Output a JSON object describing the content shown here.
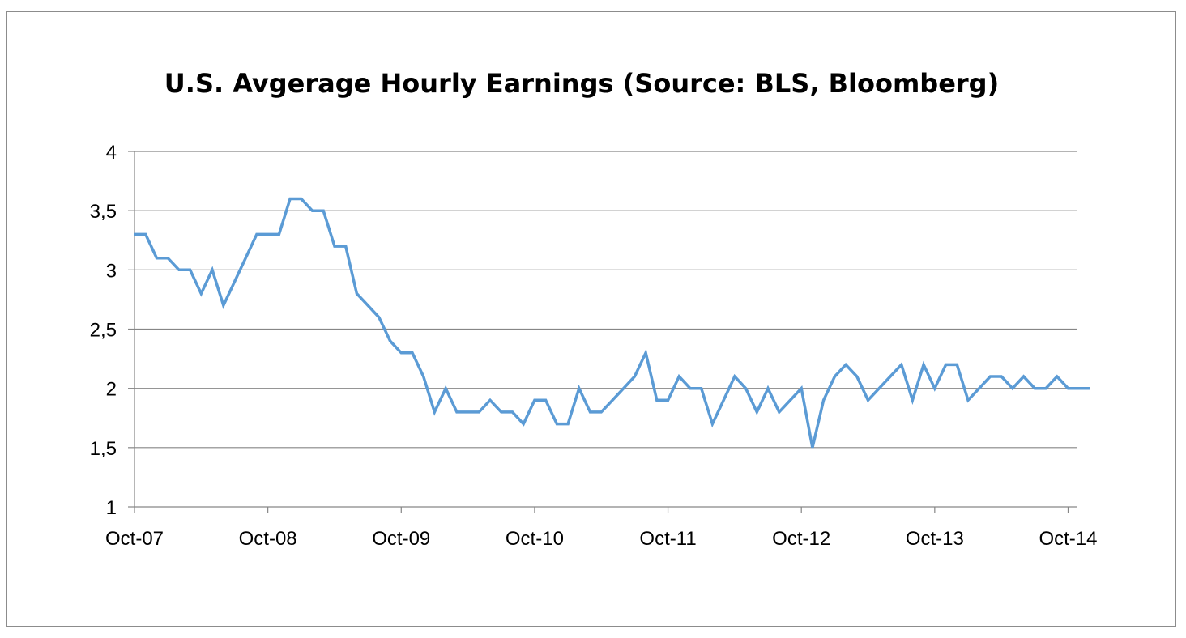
{
  "chart_data": {
    "type": "line",
    "title": "U.S. Avgerage Hourly Earnings (Source: BLS, Bloomberg)",
    "xlabel": "",
    "ylabel": "",
    "ylim": [
      1,
      4
    ],
    "y_ticks": [
      "1",
      "1,5",
      "2",
      "2,5",
      "3",
      "3,5",
      "4"
    ],
    "y_tick_values": [
      1,
      1.5,
      2,
      2.5,
      3,
      3.5,
      4
    ],
    "x_ticks": [
      "Oct-07",
      "Oct-08",
      "Oct-09",
      "Oct-10",
      "Oct-11",
      "Oct-12",
      "Oct-13",
      "Oct-14"
    ],
    "x_start": "Oct-07",
    "x_end": "Nov-14",
    "grid": true,
    "legend": "none",
    "line_color": "#5b9bd5",
    "grid_color": "#868686",
    "series": [
      {
        "values": [
          3.3,
          3.3,
          3.1,
          3.1,
          3.0,
          3.0,
          2.8,
          3.0,
          2.7,
          2.9,
          3.1,
          3.3,
          3.3,
          3.3,
          3.6,
          3.6,
          3.5,
          3.5,
          3.2,
          3.2,
          2.8,
          2.7,
          2.6,
          2.4,
          2.3,
          2.3,
          2.1,
          1.8,
          2.0,
          1.8,
          1.8,
          1.8,
          1.9,
          1.8,
          1.8,
          1.7,
          1.9,
          1.9,
          1.7,
          1.7,
          2.0,
          1.8,
          1.8,
          1.9,
          2.0,
          2.1,
          2.3,
          1.9,
          1.9,
          2.1,
          2.0,
          2.0,
          1.7,
          1.9,
          2.1,
          2.0,
          1.8,
          2.0,
          1.8,
          1.9,
          2.0,
          1.5,
          1.9,
          2.1,
          2.2,
          2.1,
          1.9,
          2.0,
          2.1,
          2.2,
          1.9,
          2.2,
          2.0,
          2.2,
          2.2,
          1.9,
          2.0,
          2.1,
          2.1,
          2.0,
          2.1,
          2.0,
          2.0,
          2.1,
          2.0,
          2.0,
          2.0
        ]
      }
    ]
  }
}
